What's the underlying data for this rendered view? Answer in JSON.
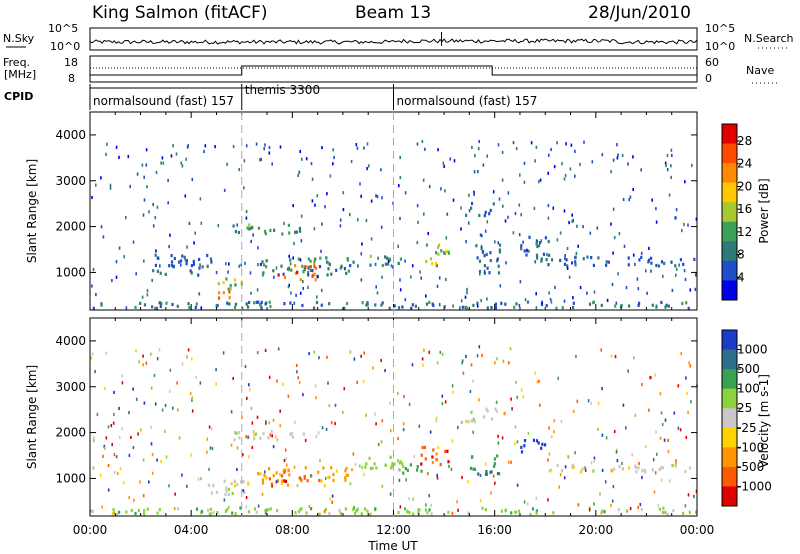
{
  "header": {
    "station": "King Salmon (fitACF)",
    "beam": "Beam 13",
    "date": "28/Jun/2010"
  },
  "top_panels": {
    "nsky_label": "N.Sky",
    "nsky_ticks": [
      "10^5",
      "10^0"
    ],
    "nsearch_label": "N.Search",
    "nsearch_ticks": [
      "10^5",
      "10^0"
    ],
    "freq_label_1": "Freq.",
    "freq_label_2": "[MHz]",
    "freq_ticks": [
      "18",
      "8"
    ],
    "nave_label": "Nave",
    "nave_ticks": [
      "60",
      "0"
    ],
    "cpid_label": "CPID"
  },
  "cpid_segments": [
    {
      "label": "normalsound (fast) 157",
      "start_hour": 0
    },
    {
      "label": "themis 3300",
      "start_hour": 6
    },
    {
      "label": "normalsound (fast) 157",
      "start_hour": 12
    }
  ],
  "chart_data": [
    {
      "type": "heatmap",
      "panel": "power",
      "ylabel": "Slant Range [km]",
      "ylim": [
        180,
        4500
      ],
      "yticks": [
        "1000",
        "2000",
        "3000",
        "4000"
      ],
      "colorbar_label": "Power [dB]",
      "colorbar_ticks": [
        "4",
        "8",
        "12",
        "16",
        "20",
        "24",
        "28"
      ],
      "colorbar_range": [
        0,
        31
      ],
      "colorbar_colors": [
        "#0000e8",
        "#1e4fc8",
        "#2d7a78",
        "#3da05a",
        "#a8c832",
        "#ffc800",
        "#ff8a00",
        "#ff4a00",
        "#e00000"
      ],
      "regions": [
        {
          "t0": 2.3,
          "t1": 4.8,
          "r0": 900,
          "r1": 1350,
          "v0": 4,
          "v1": 9
        },
        {
          "t0": 4.8,
          "t1": 6.0,
          "r0": 600,
          "r1": 900,
          "v0": 12,
          "v1": 20
        },
        {
          "t0": 5.0,
          "t1": 5.8,
          "r0": 380,
          "r1": 560,
          "v0": 20,
          "v1": 27
        },
        {
          "t0": 7.4,
          "t1": 9.0,
          "r0": 800,
          "r1": 1150,
          "v0": 20,
          "v1": 28
        },
        {
          "t0": 6.5,
          "t1": 10.5,
          "r0": 900,
          "r1": 1300,
          "v0": 6,
          "v1": 13
        },
        {
          "t0": 5.5,
          "t1": 8.5,
          "r0": 1800,
          "r1": 2000,
          "v0": 7,
          "v1": 14
        },
        {
          "t0": 11.0,
          "t1": 12.3,
          "r0": 1050,
          "r1": 1400,
          "v0": 7,
          "v1": 15
        },
        {
          "t0": 13.2,
          "t1": 14.2,
          "r0": 1100,
          "r1": 1600,
          "v0": 10,
          "v1": 18
        },
        {
          "t0": 15.2,
          "t1": 16.2,
          "r0": 900,
          "r1": 1600,
          "v0": 5,
          "v1": 10
        },
        {
          "t0": 17.0,
          "t1": 18.2,
          "r0": 1200,
          "r1": 1750,
          "v0": 5,
          "v1": 9
        },
        {
          "t0": 14.8,
          "t1": 16.0,
          "r0": 2200,
          "r1": 2500,
          "v0": 5,
          "v1": 9
        },
        {
          "t0": 18.0,
          "t1": 24.0,
          "r0": 1100,
          "r1": 1300,
          "v0": 4,
          "v1": 8
        },
        {
          "t0": 0.0,
          "t1": 24.0,
          "r0": 180,
          "r1": 320,
          "v0": 4,
          "v1": 12
        }
      ]
    },
    {
      "type": "heatmap",
      "panel": "velocity",
      "ylabel": "Slant Range [km]",
      "ylim": [
        180,
        4500
      ],
      "yticks": [
        "1000",
        "2000",
        "3000",
        "4000"
      ],
      "xlabel": "Time UT",
      "xticks": [
        "00:00",
        "04:00",
        "08:00",
        "12:00",
        "16:00",
        "20:00",
        "00:00"
      ],
      "xlim": [
        0,
        24
      ],
      "colorbar_label": "Velocity [m s-1]",
      "colorbar_ticks": [
        "1000",
        "500",
        "100",
        "25",
        "-25",
        "-100",
        "-500",
        "-1000"
      ],
      "colorbar_colors": [
        "#1a3cc8",
        "#2d6e8c",
        "#3aa052",
        "#8cd23c",
        "#c8c8c8",
        "#ffd200",
        "#ff9600",
        "#ff5a00",
        "#e00000"
      ],
      "regions": [
        {
          "t0": 4.6,
          "t1": 6.4,
          "r0": 600,
          "r1": 950,
          "c": 4
        },
        {
          "t0": 6.6,
          "t1": 10.2,
          "r0": 800,
          "r1": 1200,
          "c": 6
        },
        {
          "t0": 7.3,
          "t1": 8.8,
          "r0": 900,
          "r1": 1100,
          "c": 7
        },
        {
          "t0": 5.5,
          "t1": 8.5,
          "r0": 1800,
          "r1": 2000,
          "c": 4
        },
        {
          "t0": 10.8,
          "t1": 12.4,
          "r0": 1100,
          "r1": 1450,
          "c": 3
        },
        {
          "t0": 13.0,
          "t1": 14.2,
          "r0": 1250,
          "r1": 1650,
          "c": 7
        },
        {
          "t0": 12.3,
          "t1": 13.2,
          "r0": 1050,
          "r1": 1300,
          "c": 2
        },
        {
          "t0": 15.0,
          "t1": 16.2,
          "r0": 1000,
          "r1": 1500,
          "c": 2
        },
        {
          "t0": 14.8,
          "t1": 16.0,
          "r0": 2200,
          "r1": 2500,
          "c": 4
        },
        {
          "t0": 17.0,
          "t1": 18.0,
          "r0": 1500,
          "r1": 1800,
          "c": 0
        },
        {
          "t0": 18.0,
          "t1": 24.0,
          "r0": 1100,
          "r1": 1250,
          "c": 4
        },
        {
          "t0": 0.0,
          "t1": 24.0,
          "r0": 180,
          "r1": 320,
          "c": 3
        }
      ]
    }
  ]
}
